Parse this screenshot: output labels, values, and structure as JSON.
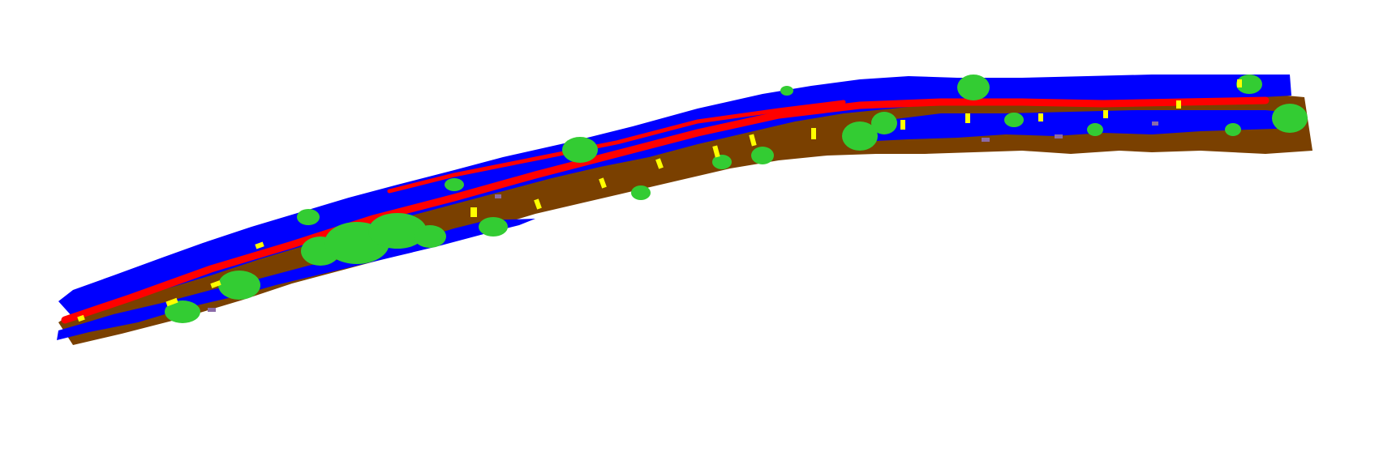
{
  "scene": {
    "kind": "semantic-segmentation point cloud, street corridor, oblique view",
    "background": "#ffffff",
    "classes": [
      {
        "id": "building",
        "color": "#0000ff"
      },
      {
        "id": "vegetation",
        "color": "#33cc33"
      },
      {
        "id": "ground",
        "color": "#7a4000"
      },
      {
        "id": "road-marking",
        "color": "#ff0000"
      },
      {
        "id": "vehicle",
        "color": "#ffff00"
      },
      {
        "id": "misc",
        "color": "#8a6aa8"
      }
    ]
  }
}
